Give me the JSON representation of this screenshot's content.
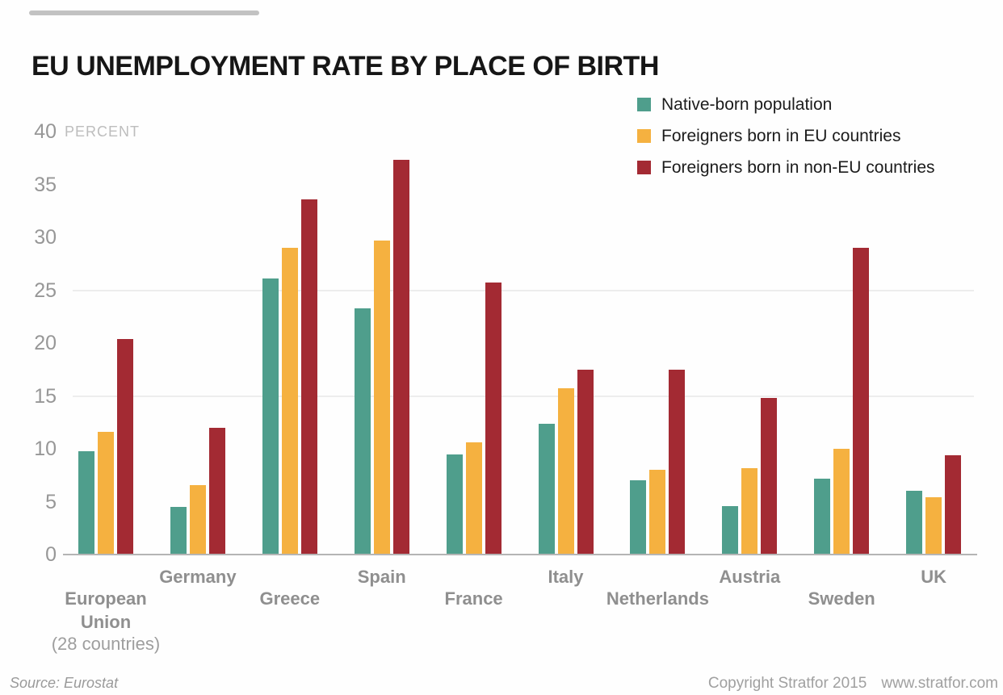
{
  "title": "EU UNEMPLOYMENT RATE BY PLACE OF BIRTH",
  "chart_data": {
    "type": "bar",
    "title": "EU UNEMPLOYMENT RATE BY PLACE OF BIRTH",
    "unit_label": "PERCENT",
    "ylabel": "PERCENT",
    "ylim": [
      0,
      40
    ],
    "yticks": [
      0,
      5,
      10,
      15,
      20,
      25,
      30,
      35,
      40
    ],
    "gridlines_at": [
      15,
      25
    ],
    "legend_position": "top-right",
    "categories": [
      {
        "label": "European Union",
        "sublabel": "(28 countries)",
        "row": 2
      },
      {
        "label": "Germany",
        "row": 1
      },
      {
        "label": "Greece",
        "row": 2
      },
      {
        "label": "Spain",
        "row": 1
      },
      {
        "label": "France",
        "row": 2
      },
      {
        "label": "Italy",
        "row": 1
      },
      {
        "label": "Netherlands",
        "row": 2
      },
      {
        "label": "Austria",
        "row": 1
      },
      {
        "label": "Sweden",
        "row": 2
      },
      {
        "label": "UK",
        "row": 1
      }
    ],
    "series": [
      {
        "name": "Native-born population",
        "color": "#4f9e8c",
        "values": [
          9.8,
          4.5,
          26.1,
          23.3,
          9.5,
          12.4,
          7.0,
          4.6,
          7.2,
          6.0
        ]
      },
      {
        "name": "Foreigners born in EU countries",
        "color": "#f5b140",
        "values": [
          11.6,
          6.6,
          29.0,
          29.7,
          10.6,
          15.7,
          8.0,
          8.2,
          10.0,
          5.4
        ]
      },
      {
        "name": "Foreigners born in non-EU countries",
        "color": "#a32a33",
        "values": [
          20.4,
          12.0,
          33.6,
          37.3,
          25.7,
          17.5,
          17.5,
          14.8,
          29.0,
          9.4
        ]
      }
    ]
  },
  "footer": {
    "source": "Source: Eurostat",
    "copyright": "Copyright Stratfor 2015",
    "website": "www.stratfor.com"
  }
}
